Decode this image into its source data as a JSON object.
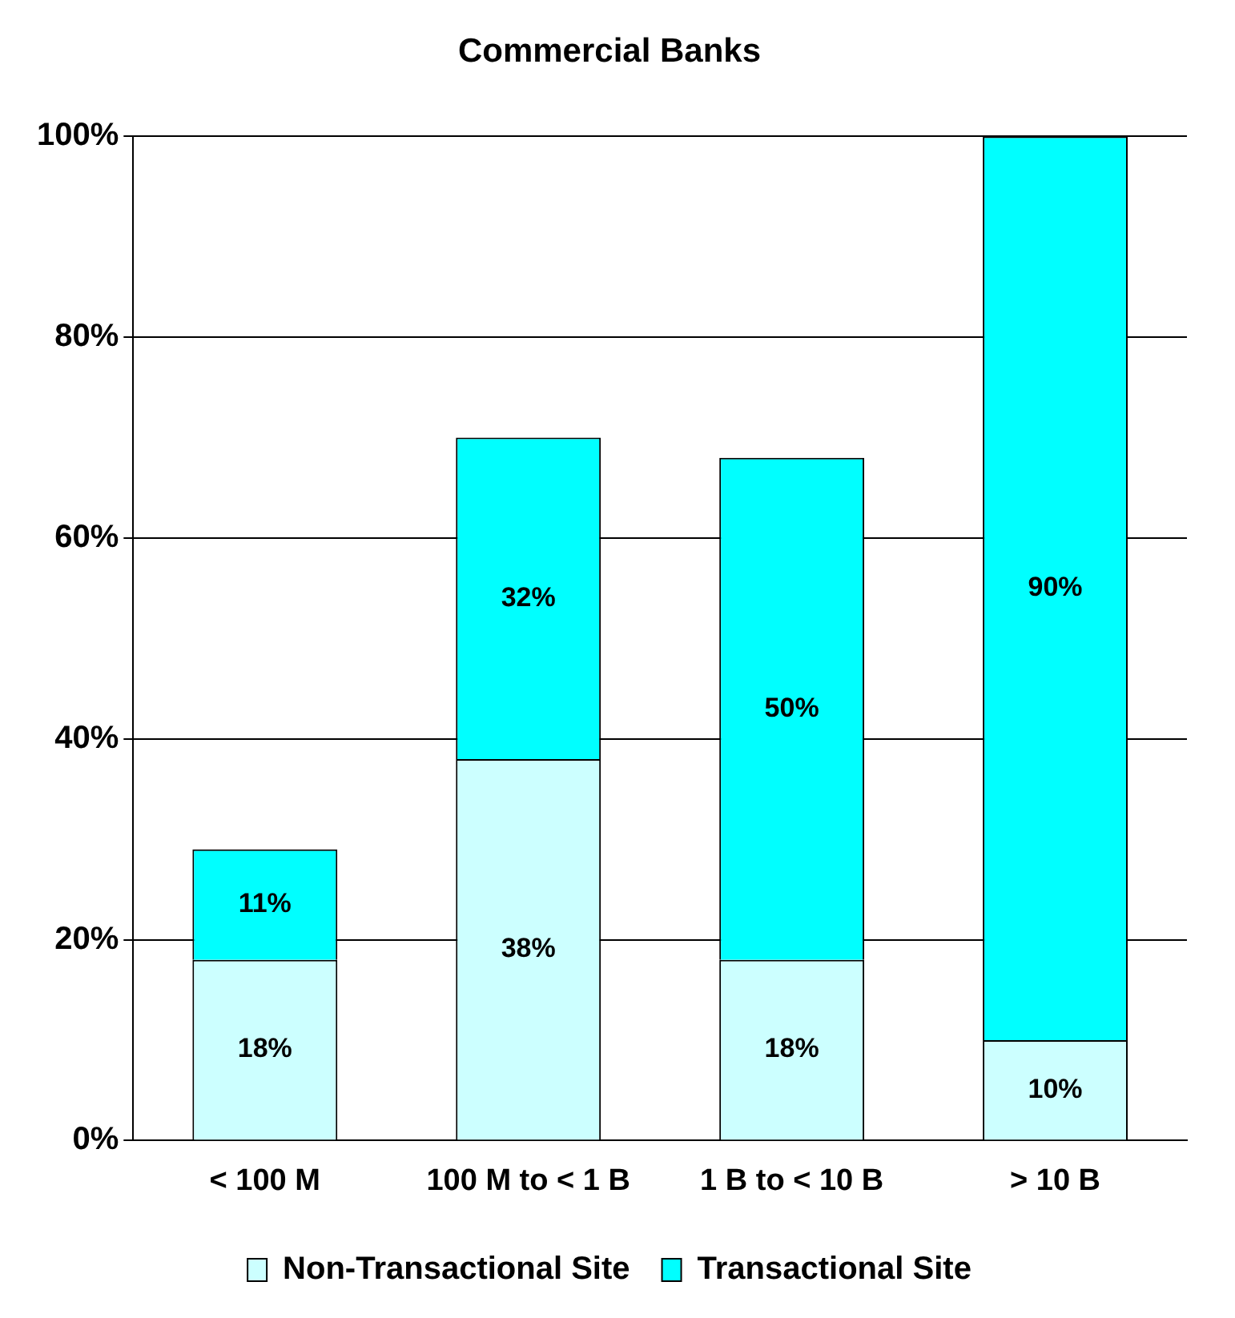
{
  "chart_data": {
    "type": "bar",
    "title": "Commercial Banks",
    "categories": [
      "< 100 M",
      "100 M to < 1 B",
      "1 B to < 10 B",
      "> 10 B"
    ],
    "series": [
      {
        "name": "Non-Transactional Site",
        "color": "#ccffff",
        "values": [
          18,
          38,
          18,
          10
        ]
      },
      {
        "name": "Transactional Site",
        "color": "#00ffff",
        "values": [
          11,
          32,
          50,
          90
        ]
      }
    ],
    "stacked": true,
    "ylim": [
      0,
      100
    ],
    "yticks": [
      {
        "value": 0,
        "label": "0%"
      },
      {
        "value": 20,
        "label": "20%"
      },
      {
        "value": 40,
        "label": "40%"
      },
      {
        "value": 60,
        "label": "60%"
      },
      {
        "value": 80,
        "label": "80%"
      },
      {
        "value": 100,
        "label": "100%"
      }
    ],
    "value_labels": [
      [
        "18%",
        "38%",
        "18%",
        "10%"
      ],
      [
        "11%",
        "32%",
        "50%",
        "90%"
      ]
    ],
    "grid": "y",
    "legend": "bottom"
  }
}
